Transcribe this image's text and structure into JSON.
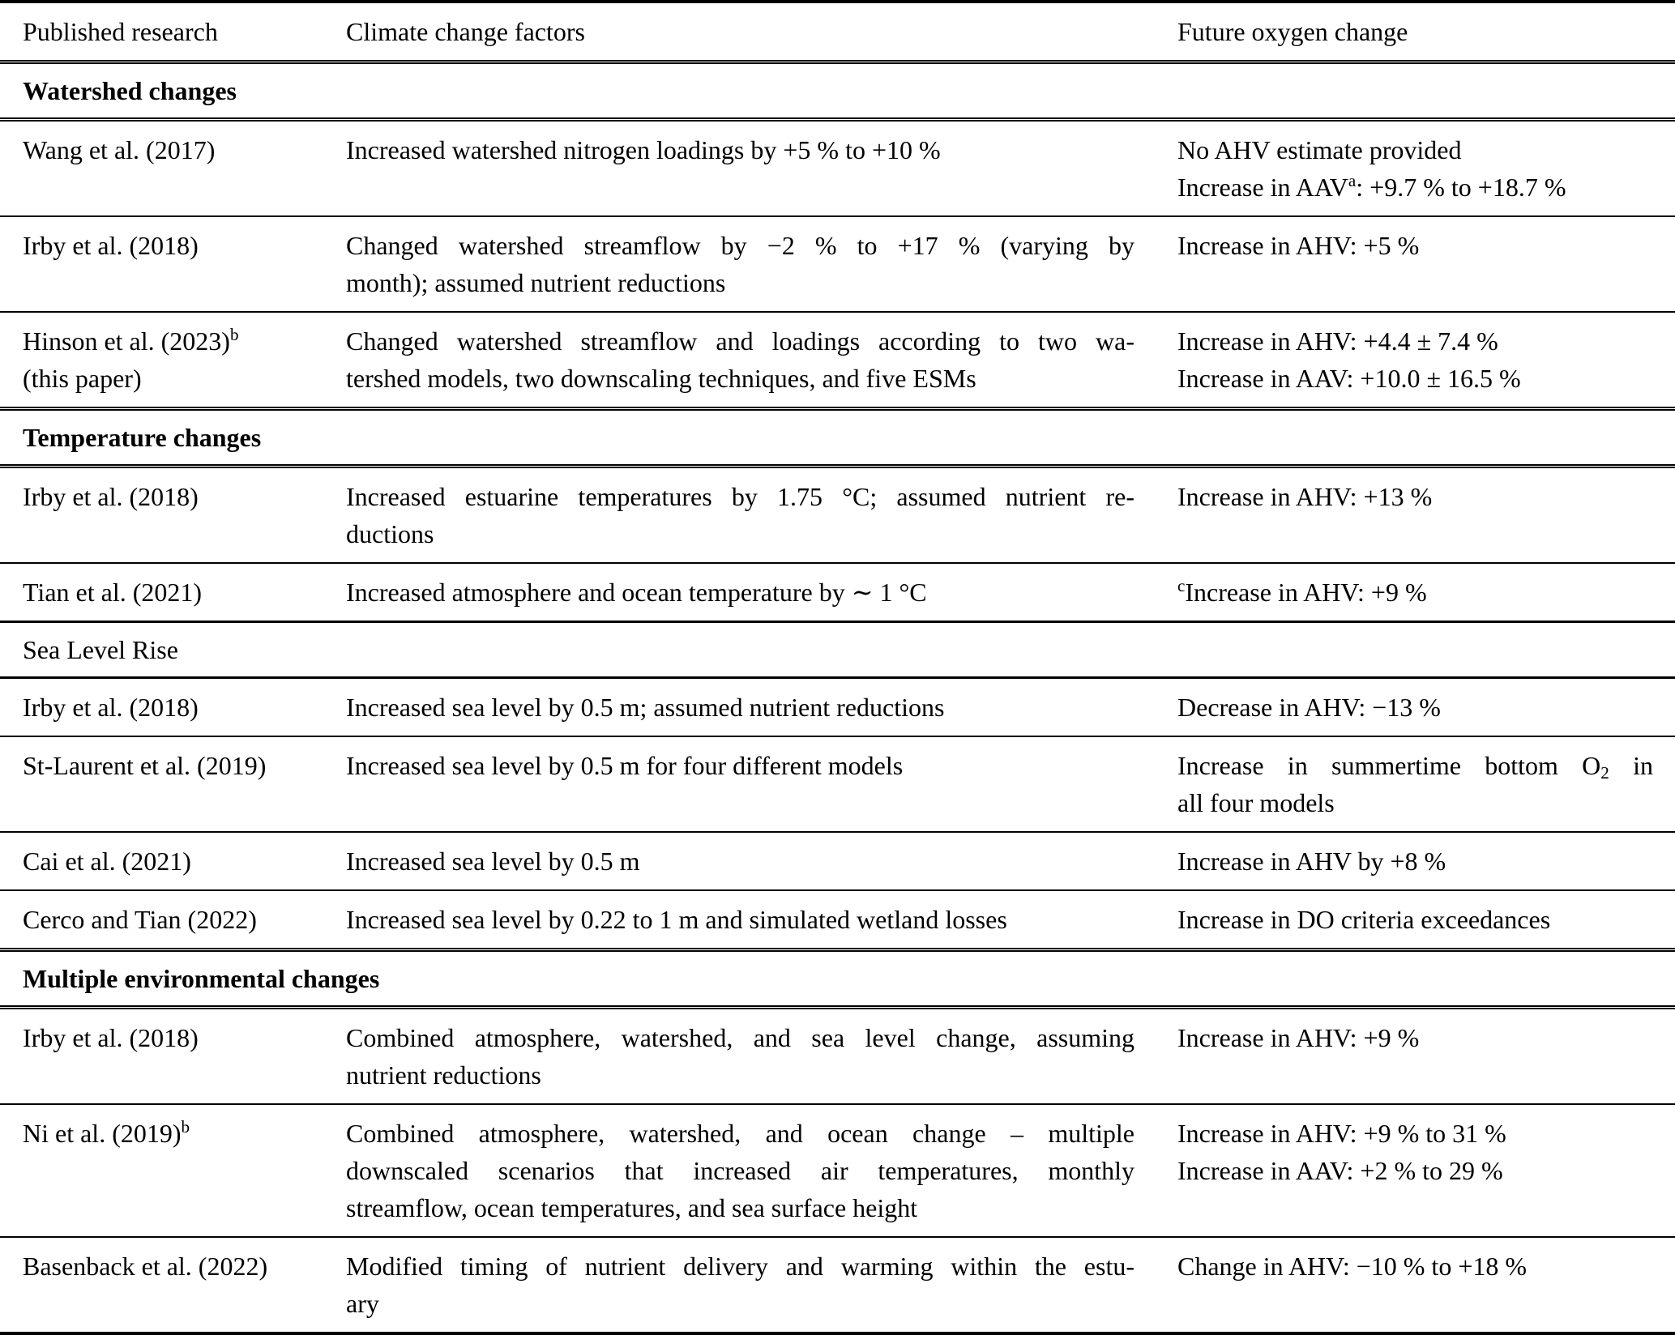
{
  "table": {
    "headers": [
      "Published research",
      "Climate change factors",
      "Future oxygen change"
    ],
    "rows": [
      {
        "type": "section",
        "label": "Watershed changes",
        "bold": true
      },
      {
        "type": "data",
        "research": [
          {
            "t": "Wang et al. (2017)"
          }
        ],
        "factors": [
          {
            "t": "Increased watershed nitrogen loadings by +5 % to +10 %"
          }
        ],
        "oxygen": [
          {
            "t": "No AHV estimate provided"
          },
          {
            "t": "Increase in AAV^{a}: +9.7 % to +18.7 %"
          }
        ]
      },
      {
        "type": "data",
        "research": [
          {
            "t": "Irby et al. (2018)"
          }
        ],
        "factors": [
          {
            "t": "Changed watershed streamflow by −2 % to +17 % (varying by",
            "j": true
          },
          {
            "t": "month); assumed nutrient reductions"
          }
        ],
        "oxygen": [
          {
            "t": "Increase in AHV: +5 %"
          }
        ]
      },
      {
        "type": "data",
        "research": [
          {
            "t": "Hinson et al. (2023)^{b}"
          },
          {
            "t": "(this paper)"
          }
        ],
        "factors": [
          {
            "t": "Changed watershed streamflow and loadings according to two wa-",
            "j": true
          },
          {
            "t": "tershed models, two downscaling techniques, and five ESMs"
          }
        ],
        "oxygen": [
          {
            "t": "Increase in AHV: +4.4 ± 7.4 %"
          },
          {
            "t": "Increase in AAV: +10.0 ± 16.5 %"
          }
        ]
      },
      {
        "type": "section",
        "label": "Temperature changes",
        "bold": true
      },
      {
        "type": "data",
        "research": [
          {
            "t": "Irby et al. (2018)"
          }
        ],
        "factors": [
          {
            "t": "Increased estuarine temperatures by 1.75 °C; assumed nutrient re-",
            "j": true
          },
          {
            "t": "ductions"
          }
        ],
        "oxygen": [
          {
            "t": "Increase in AHV: +13 %"
          }
        ]
      },
      {
        "type": "data",
        "research": [
          {
            "t": "Tian et al. (2021)"
          }
        ],
        "factors": [
          {
            "t": "Increased atmosphere and ocean temperature by ∼ 1 °C"
          }
        ],
        "oxygen": [
          {
            "t": "^{c}Increase in AHV: +9 %"
          }
        ]
      },
      {
        "type": "section",
        "label": "Sea Level Rise",
        "bold": false
      },
      {
        "type": "data",
        "research": [
          {
            "t": "Irby et al. (2018)"
          }
        ],
        "factors": [
          {
            "t": "Increased sea level by 0.5 m; assumed nutrient reductions"
          }
        ],
        "oxygen": [
          {
            "t": "Decrease in AHV: −13 %"
          }
        ]
      },
      {
        "type": "data",
        "research": [
          {
            "t": "St-Laurent et al. (2019)"
          }
        ],
        "factors": [
          {
            "t": "Increased sea level by 0.5 m for four different models"
          }
        ],
        "oxygen": [
          {
            "t": "Increase in summertime bottom O_{2} in",
            "j": true
          },
          {
            "t": "all four models"
          }
        ]
      },
      {
        "type": "data",
        "research": [
          {
            "t": "Cai et al. (2021)"
          }
        ],
        "factors": [
          {
            "t": "Increased sea level by 0.5 m"
          }
        ],
        "oxygen": [
          {
            "t": "Increase in AHV by +8 %"
          }
        ]
      },
      {
        "type": "data",
        "research": [
          {
            "t": "Cerco and Tian (2022)"
          }
        ],
        "factors": [
          {
            "t": "Increased sea level by 0.22 to 1 m and simulated wetland losses"
          }
        ],
        "oxygen": [
          {
            "t": "Increase in DO criteria exceedances"
          }
        ]
      },
      {
        "type": "section",
        "label": "Multiple environmental changes",
        "bold": true
      },
      {
        "type": "data",
        "research": [
          {
            "t": "Irby et al. (2018)"
          }
        ],
        "factors": [
          {
            "t": "Combined atmosphere, watershed, and sea level change, assuming",
            "j": true
          },
          {
            "t": "nutrient reductions"
          }
        ],
        "oxygen": [
          {
            "t": "Increase in AHV: +9 %"
          }
        ]
      },
      {
        "type": "data",
        "research": [
          {
            "t": "Ni et al. (2019)^{b}"
          }
        ],
        "factors": [
          {
            "t": "Combined atmosphere, watershed, and ocean change – multiple",
            "j": true
          },
          {
            "t": "downscaled scenarios that increased air temperatures, monthly",
            "j": true
          },
          {
            "t": "streamflow, ocean temperatures, and sea surface height"
          }
        ],
        "oxygen": [
          {
            "t": "Increase in AHV: +9 % to 31 %"
          },
          {
            "t": "Increase in AAV: +2 % to 29 %"
          }
        ]
      },
      {
        "type": "data",
        "research": [
          {
            "t": "Basenback et al. (2022)"
          }
        ],
        "factors": [
          {
            "t": "Modified timing of nutrient delivery and warming within the estu-",
            "j": true
          },
          {
            "t": "ary"
          }
        ],
        "oxygen": [
          {
            "t": "Change in AHV: −10 % to +18 %"
          }
        ]
      }
    ]
  }
}
